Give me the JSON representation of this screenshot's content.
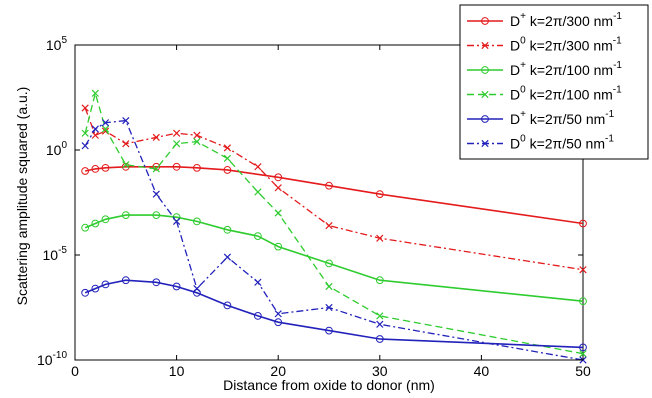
{
  "chart_data": {
    "type": "line",
    "xlabel": "Distance from oxide to donor (nm)",
    "ylabel": "Scattering amplitude squared (a.u.)",
    "xlim": [
      0,
      50
    ],
    "ylim_log10": [
      -10,
      5
    ],
    "yscale": "log",
    "grid": false,
    "legend_position": "top-right",
    "x_ticks": [
      0,
      10,
      20,
      30,
      40,
      50
    ],
    "x_tick_labels": [
      "0",
      "10",
      "20",
      "30",
      "40",
      "50"
    ],
    "y_ticks_log10": [
      -10,
      -5,
      0,
      5
    ],
    "y_tick_labels": [
      {
        "base": "10",
        "exp": "-10"
      },
      {
        "base": "10",
        "exp": "-5"
      },
      {
        "base": "10",
        "exp": "0"
      },
      {
        "base": "10",
        "exp": "5"
      }
    ],
    "series": [
      {
        "name": "D+ k=2π/300 nm-1",
        "legend": {
          "sym": "D",
          "sup": "+",
          "mid": " k=2π/300 nm",
          "tail": "-1"
        },
        "color": "#e41a1c",
        "dash": "solid",
        "marker": "circle",
        "x": [
          1,
          2,
          3,
          5,
          8,
          10,
          12,
          15,
          20,
          25,
          30,
          50
        ],
        "log10y": [
          -1.0,
          -0.9,
          -0.85,
          -0.8,
          -0.8,
          -0.8,
          -0.85,
          -0.95,
          -1.3,
          -1.7,
          -2.1,
          -3.5
        ]
      },
      {
        "name": "D0 k=2π/300 nm-1",
        "legend": {
          "sym": "D",
          "sup": "0",
          "mid": " k=2π/300 nm",
          "tail": "-1"
        },
        "color": "#e41a1c",
        "dash": "dashdot",
        "marker": "x",
        "x": [
          1,
          2,
          3,
          5,
          8,
          10,
          12,
          15,
          18,
          20,
          25,
          30,
          50
        ],
        "log10y": [
          2.0,
          0.7,
          0.9,
          0.3,
          0.6,
          0.8,
          0.7,
          0.1,
          -0.8,
          -1.8,
          -3.6,
          -4.2,
          -5.7
        ]
      },
      {
        "name": "D+ k=2π/100 nm-1",
        "legend": {
          "sym": "D",
          "sup": "+",
          "mid": " k=2π/100 nm",
          "tail": "-1"
        },
        "color": "#2ecc2e",
        "dash": "solid",
        "marker": "circle",
        "x": [
          1,
          2,
          3,
          5,
          8,
          10,
          12,
          15,
          18,
          20,
          25,
          30,
          50
        ],
        "log10y": [
          -3.7,
          -3.5,
          -3.3,
          -3.1,
          -3.1,
          -3.2,
          -3.4,
          -3.8,
          -4.1,
          -4.6,
          -5.4,
          -6.2,
          -7.2
        ]
      },
      {
        "name": "D0 k=2π/100 nm-1",
        "legend": {
          "sym": "D",
          "sup": "0",
          "mid": " k=2π/100 nm",
          "tail": "-1"
        },
        "color": "#2ecc2e",
        "dash": "dashed",
        "marker": "x",
        "x": [
          1,
          2,
          3,
          5,
          8,
          10,
          12,
          15,
          18,
          20,
          25,
          30,
          50
        ],
        "log10y": [
          0.8,
          2.7,
          1.0,
          -0.7,
          -0.9,
          0.3,
          0.4,
          -0.4,
          -2.0,
          -3.0,
          -6.5,
          -7.9,
          -9.7
        ]
      },
      {
        "name": "D+ k=2π/50 nm-1",
        "legend": {
          "sym": "D",
          "sup": "+",
          "mid": " k=2π/50 nm",
          "tail": "-1"
        },
        "color": "#2222bb",
        "dash": "solid",
        "marker": "circle",
        "x": [
          1,
          2,
          3,
          5,
          8,
          10,
          12,
          15,
          18,
          20,
          25,
          30,
          50
        ],
        "log10y": [
          -6.8,
          -6.6,
          -6.4,
          -6.2,
          -6.3,
          -6.5,
          -6.8,
          -7.4,
          -7.9,
          -8.2,
          -8.6,
          -9.0,
          -9.4
        ]
      },
      {
        "name": "D0 k=2π/50 nm-1",
        "legend": {
          "sym": "D",
          "sup": "0",
          "mid": " k=2π/50 nm",
          "tail": "-1"
        },
        "color": "#2222bb",
        "dash": "dashdot",
        "marker": "x",
        "x": [
          1,
          2,
          3,
          5,
          8,
          10,
          12,
          15,
          18,
          20,
          25,
          30,
          50
        ],
        "log10y": [
          0.2,
          1.0,
          1.3,
          1.4,
          -2.1,
          -3.4,
          -6.6,
          -5.1,
          -6.3,
          -7.8,
          -7.5,
          -8.3,
          -10.0
        ]
      }
    ]
  }
}
